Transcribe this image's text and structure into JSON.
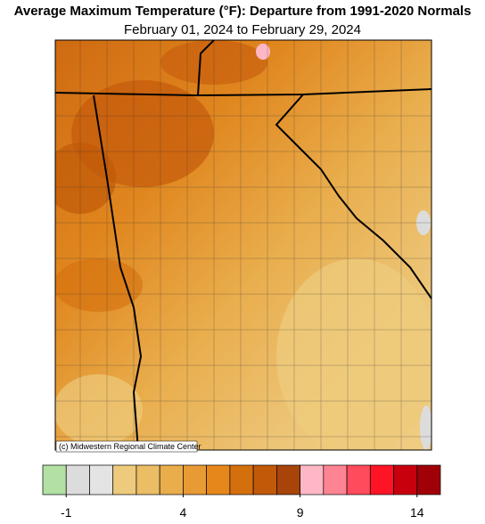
{
  "title": "Average Maximum Temperature (°F): Departure from 1991-2020 Normals",
  "subtitle": "February 01, 2024 to February 29, 2024",
  "credit": "(c) Midwestern Regional Climate Center",
  "colorbar": {
    "lim": [
      -2,
      15
    ],
    "ticks": [
      -1,
      4,
      9,
      14
    ],
    "colors": [
      "#b3e0a3",
      "#dcdcdc",
      "#e4e4e4",
      "#eecb7c",
      "#ebbd64",
      "#e9ad4c",
      "#e89a34",
      "#e6871c",
      "#d46f0e",
      "#c15a08",
      "#a8440a",
      "#ffb7c6",
      "#ff8493",
      "#ff4b5c",
      "#ff1426",
      "#c8000e",
      "#a00008"
    ]
  }
}
